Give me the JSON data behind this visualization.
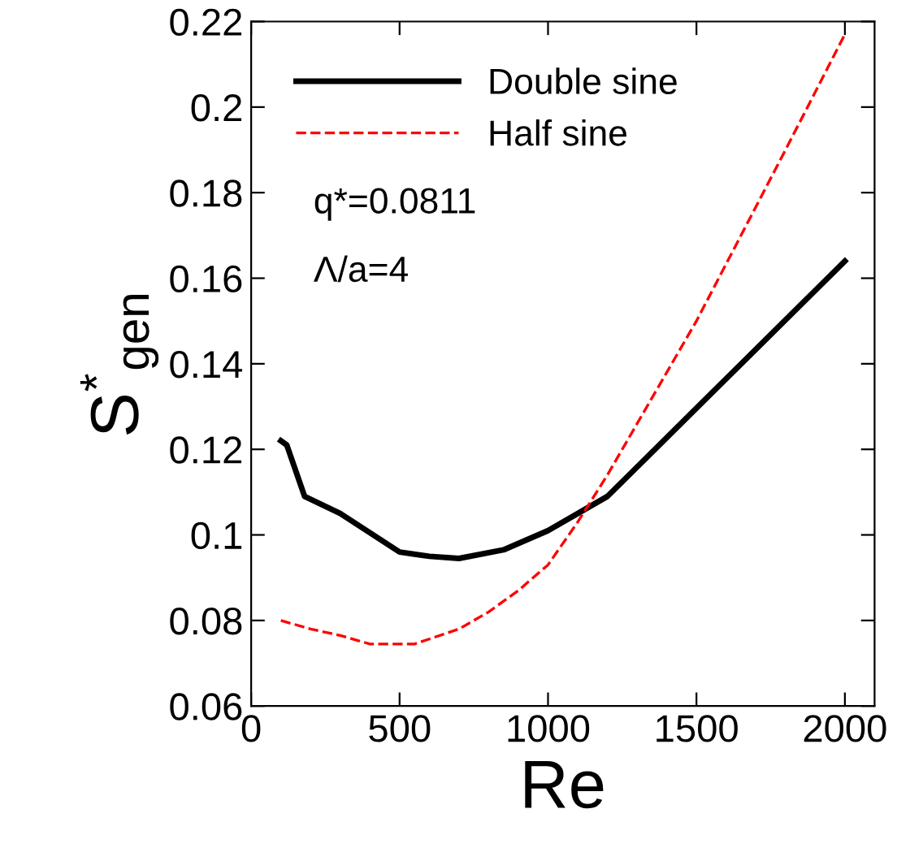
{
  "chart_data": {
    "type": "line",
    "xlabel": "Re",
    "ylabel": "S$^{*}$$_{gen}$",
    "xlim": [
      0,
      2100
    ],
    "ylim": [
      0.06,
      0.22
    ],
    "xticks": [
      0,
      500,
      1000,
      1500,
      2000
    ],
    "yticks": [
      0.06,
      0.08,
      0.1,
      0.12,
      0.14,
      0.16,
      0.18,
      0.2,
      0.22
    ],
    "grid": false,
    "legend": "top left",
    "annotations": [
      "q*=0.0811",
      "Λ/a=4"
    ],
    "series": [
      {
        "name": "Double sine",
        "color": "#000000",
        "line_style": "solid",
        "x": [
          100,
          120,
          180,
          300,
          500,
          600,
          700,
          850,
          1000,
          1200,
          2000
        ],
        "values": [
          0.122,
          0.121,
          0.109,
          0.105,
          0.096,
          0.095,
          0.0945,
          0.0965,
          0.101,
          0.109,
          0.164
        ]
      },
      {
        "name": "Half sine",
        "color": "#ff0000",
        "line_style": "dashed",
        "x": [
          100,
          200,
          300,
          400,
          550,
          700,
          800,
          900,
          1000,
          1100,
          1200,
          1500,
          1800,
          2000
        ],
        "values": [
          0.08,
          0.078,
          0.0765,
          0.0745,
          0.0745,
          0.078,
          0.082,
          0.087,
          0.093,
          0.103,
          0.114,
          0.15,
          0.19,
          0.217
        ]
      }
    ]
  }
}
